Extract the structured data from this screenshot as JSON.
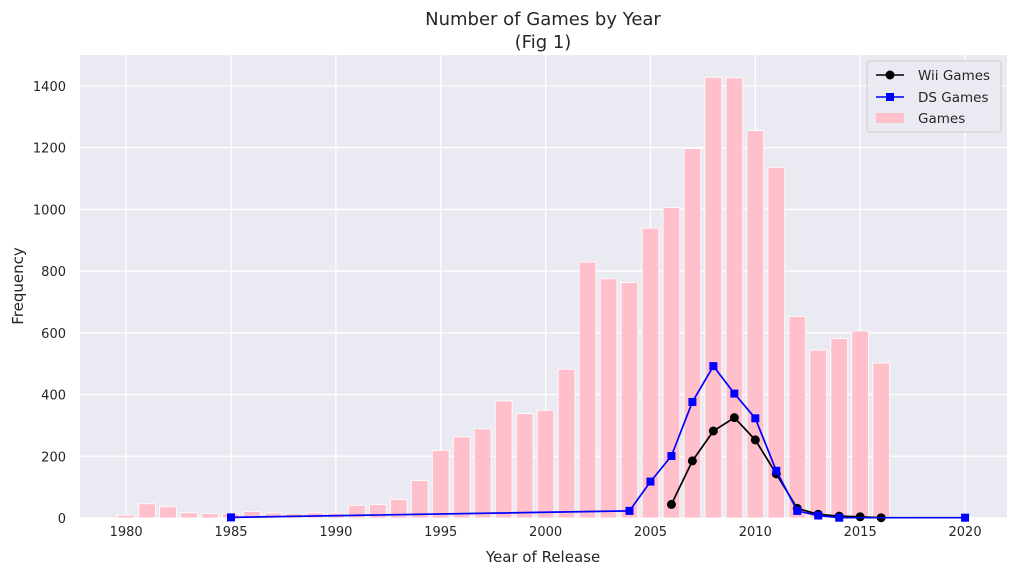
{
  "chart_data": {
    "type": "bar",
    "title": "Number of Games by Year",
    "subtitle": "(Fig 1)",
    "xlabel": "Year of Release",
    "ylabel": "Frequency",
    "xlim": [
      1977.8,
      2022
    ],
    "ylim": [
      0,
      1500
    ],
    "xticks": [
      1980,
      1985,
      1990,
      1995,
      2000,
      2005,
      2010,
      2015,
      2020
    ],
    "yticks": [
      0,
      200,
      400,
      600,
      800,
      1000,
      1200,
      1400
    ],
    "grid": true,
    "legend_position": "top-right",
    "colors": {
      "background": "#eaeaf2",
      "grid": "#ffffff",
      "bars": "#ffc0cb",
      "wii": "#000000",
      "ds": "#0000ff"
    },
    "bars": {
      "name": "Games",
      "x": [
        1980,
        1981,
        1982,
        1983,
        1984,
        1985,
        1986,
        1987,
        1988,
        1989,
        1990,
        1991,
        1992,
        1993,
        1994,
        1995,
        1996,
        1997,
        1998,
        1999,
        2000,
        2001,
        2002,
        2003,
        2004,
        2005,
        2006,
        2007,
        2008,
        2009,
        2010,
        2011,
        2012,
        2013,
        2014,
        2015,
        2016,
        2017,
        2020
      ],
      "values": [
        9,
        46,
        36,
        17,
        14,
        14,
        21,
        16,
        15,
        17,
        16,
        41,
        43,
        60,
        121,
        219,
        263,
        289,
        379,
        338,
        349,
        482,
        829,
        775,
        763,
        939,
        1006,
        1197,
        1428,
        1426,
        1255,
        1136,
        653,
        544,
        581,
        606,
        502,
        3,
        1
      ]
    },
    "series": [
      {
        "name": "Wii Games",
        "marker": "circle",
        "x": [
          2006,
          2007,
          2008,
          2009,
          2010,
          2011,
          2012,
          2013,
          2014,
          2015,
          2016
        ],
        "values": [
          44,
          185,
          282,
          325,
          253,
          143,
          31,
          12,
          6,
          4,
          1
        ]
      },
      {
        "name": "DS Games",
        "marker": "square",
        "x": [
          1985,
          2004,
          2005,
          2006,
          2007,
          2008,
          2009,
          2010,
          2011,
          2012,
          2013,
          2014,
          2020
        ],
        "values": [
          2,
          23,
          118,
          201,
          376,
          492,
          403,
          323,
          153,
          23,
          8,
          1,
          1
        ]
      }
    ]
  }
}
